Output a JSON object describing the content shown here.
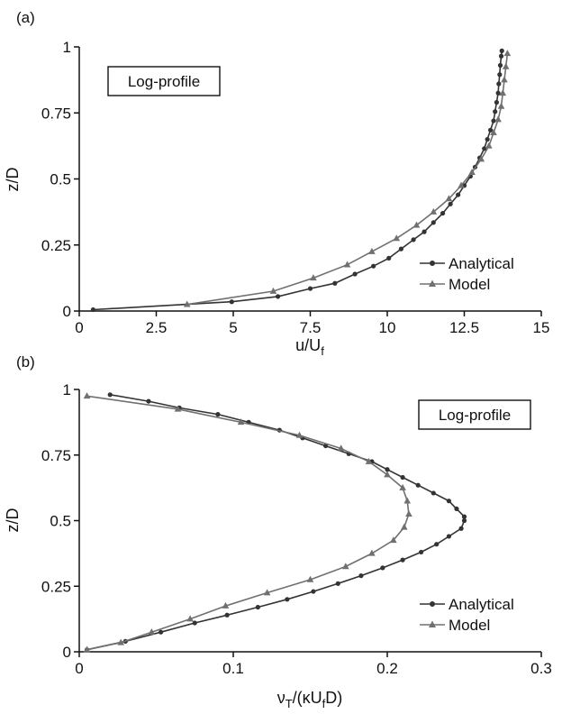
{
  "chart_data": [
    {
      "panel": "(a)",
      "type": "line",
      "annotation": "Log-profile",
      "xlabel": "u/U",
      "xlabel_sub": "f",
      "ylabel": "z/D",
      "xlim": [
        0,
        15
      ],
      "ylim": [
        0,
        1
      ],
      "xticks": [
        "0",
        "2.5",
        "5",
        "7.5",
        "10",
        "12.5",
        "15"
      ],
      "yticks": [
        "0",
        "0.25",
        "0.5",
        "0.75",
        "1"
      ],
      "legend_position": "bottom-right",
      "series": [
        {
          "name": "Analytical",
          "color": "#333333",
          "marker": "circle",
          "points": [
            [
              0.45,
              0.005
            ],
            [
              4.95,
              0.035
            ],
            [
              6.45,
              0.055
            ],
            [
              7.5,
              0.085
            ],
            [
              8.3,
              0.105
            ],
            [
              8.95,
              0.14
            ],
            [
              9.55,
              0.17
            ],
            [
              10.05,
              0.2
            ],
            [
              10.45,
              0.235
            ],
            [
              10.85,
              0.27
            ],
            [
              11.2,
              0.3
            ],
            [
              11.5,
              0.335
            ],
            [
              11.8,
              0.37
            ],
            [
              12.05,
              0.405
            ],
            [
              12.3,
              0.44
            ],
            [
              12.5,
              0.475
            ],
            [
              12.7,
              0.51
            ],
            [
              12.85,
              0.545
            ],
            [
              13.0,
              0.58
            ],
            [
              13.15,
              0.615
            ],
            [
              13.25,
              0.65
            ],
            [
              13.35,
              0.685
            ],
            [
              13.45,
              0.72
            ],
            [
              13.5,
              0.755
            ],
            [
              13.55,
              0.79
            ],
            [
              13.6,
              0.825
            ],
            [
              13.62,
              0.86
            ],
            [
              13.65,
              0.895
            ],
            [
              13.67,
              0.93
            ],
            [
              13.7,
              0.965
            ],
            [
              13.72,
              0.985
            ]
          ]
        },
        {
          "name": "Model",
          "color": "#707070",
          "marker": "triangle",
          "points": [
            [
              3.5,
              0.025
            ],
            [
              6.3,
              0.075
            ],
            [
              7.6,
              0.125
            ],
            [
              8.7,
              0.175
            ],
            [
              9.5,
              0.225
            ],
            [
              10.3,
              0.275
            ],
            [
              10.95,
              0.325
            ],
            [
              11.5,
              0.375
            ],
            [
              12.0,
              0.425
            ],
            [
              12.4,
              0.475
            ],
            [
              12.75,
              0.525
            ],
            [
              13.05,
              0.575
            ],
            [
              13.3,
              0.625
            ],
            [
              13.45,
              0.675
            ],
            [
              13.6,
              0.725
            ],
            [
              13.7,
              0.775
            ],
            [
              13.75,
              0.825
            ],
            [
              13.8,
              0.875
            ],
            [
              13.85,
              0.925
            ],
            [
              13.9,
              0.975
            ]
          ]
        }
      ]
    },
    {
      "panel": "(b)",
      "type": "line",
      "annotation": "Log-profile",
      "xlabel": "ν",
      "xlabel_sub": "T",
      "xlabel_rest": "/(κU",
      "xlabel_sub2": "f",
      "xlabel_end": "D)",
      "ylabel": "z/D",
      "xlim": [
        0,
        0.3
      ],
      "ylim": [
        0,
        1
      ],
      "xticks": [
        "0",
        "0.1",
        "0.2",
        "0.3"
      ],
      "yticks": [
        "0",
        "0.25",
        "0.5",
        "0.75",
        "1"
      ],
      "legend_position": "bottom-right",
      "series": [
        {
          "name": "Analytical",
          "color": "#333333",
          "marker": "circle",
          "points": [
            [
              0.02,
              0.98
            ],
            [
              0.045,
              0.955
            ],
            [
              0.065,
              0.93
            ],
            [
              0.09,
              0.905
            ],
            [
              0.11,
              0.875
            ],
            [
              0.13,
              0.845
            ],
            [
              0.145,
              0.815
            ],
            [
              0.16,
              0.785
            ],
            [
              0.175,
              0.755
            ],
            [
              0.19,
              0.725
            ],
            [
              0.2,
              0.695
            ],
            [
              0.21,
              0.665
            ],
            [
              0.22,
              0.635
            ],
            [
              0.23,
              0.605
            ],
            [
              0.24,
              0.575
            ],
            [
              0.245,
              0.545
            ],
            [
              0.25,
              0.515
            ],
            [
              0.25,
              0.5
            ],
            [
              0.248,
              0.47
            ],
            [
              0.24,
              0.44
            ],
            [
              0.232,
              0.41
            ],
            [
              0.222,
              0.38
            ],
            [
              0.21,
              0.35
            ],
            [
              0.197,
              0.32
            ],
            [
              0.183,
              0.29
            ],
            [
              0.168,
              0.26
            ],
            [
              0.152,
              0.23
            ],
            [
              0.135,
              0.2
            ],
            [
              0.116,
              0.17
            ],
            [
              0.096,
              0.14
            ],
            [
              0.075,
              0.11
            ],
            [
              0.053,
              0.075
            ],
            [
              0.03,
              0.04
            ],
            [
              0.005,
              0.008
            ]
          ]
        },
        {
          "name": "Model",
          "color": "#707070",
          "marker": "triangle",
          "points": [
            [
              0.005,
              0.975
            ],
            [
              0.064,
              0.925
            ],
            [
              0.105,
              0.875
            ],
            [
              0.143,
              0.825
            ],
            [
              0.17,
              0.775
            ],
            [
              0.188,
              0.725
            ],
            [
              0.2,
              0.675
            ],
            [
              0.21,
              0.625
            ],
            [
              0.213,
              0.575
            ],
            [
              0.214,
              0.525
            ],
            [
              0.211,
              0.475
            ],
            [
              0.204,
              0.425
            ],
            [
              0.19,
              0.375
            ],
            [
              0.173,
              0.325
            ],
            [
              0.15,
              0.275
            ],
            [
              0.122,
              0.225
            ],
            [
              0.095,
              0.175
            ],
            [
              0.072,
              0.125
            ],
            [
              0.047,
              0.075
            ],
            [
              0.027,
              0.035
            ],
            [
              0.005,
              0.008
            ]
          ]
        }
      ]
    }
  ]
}
